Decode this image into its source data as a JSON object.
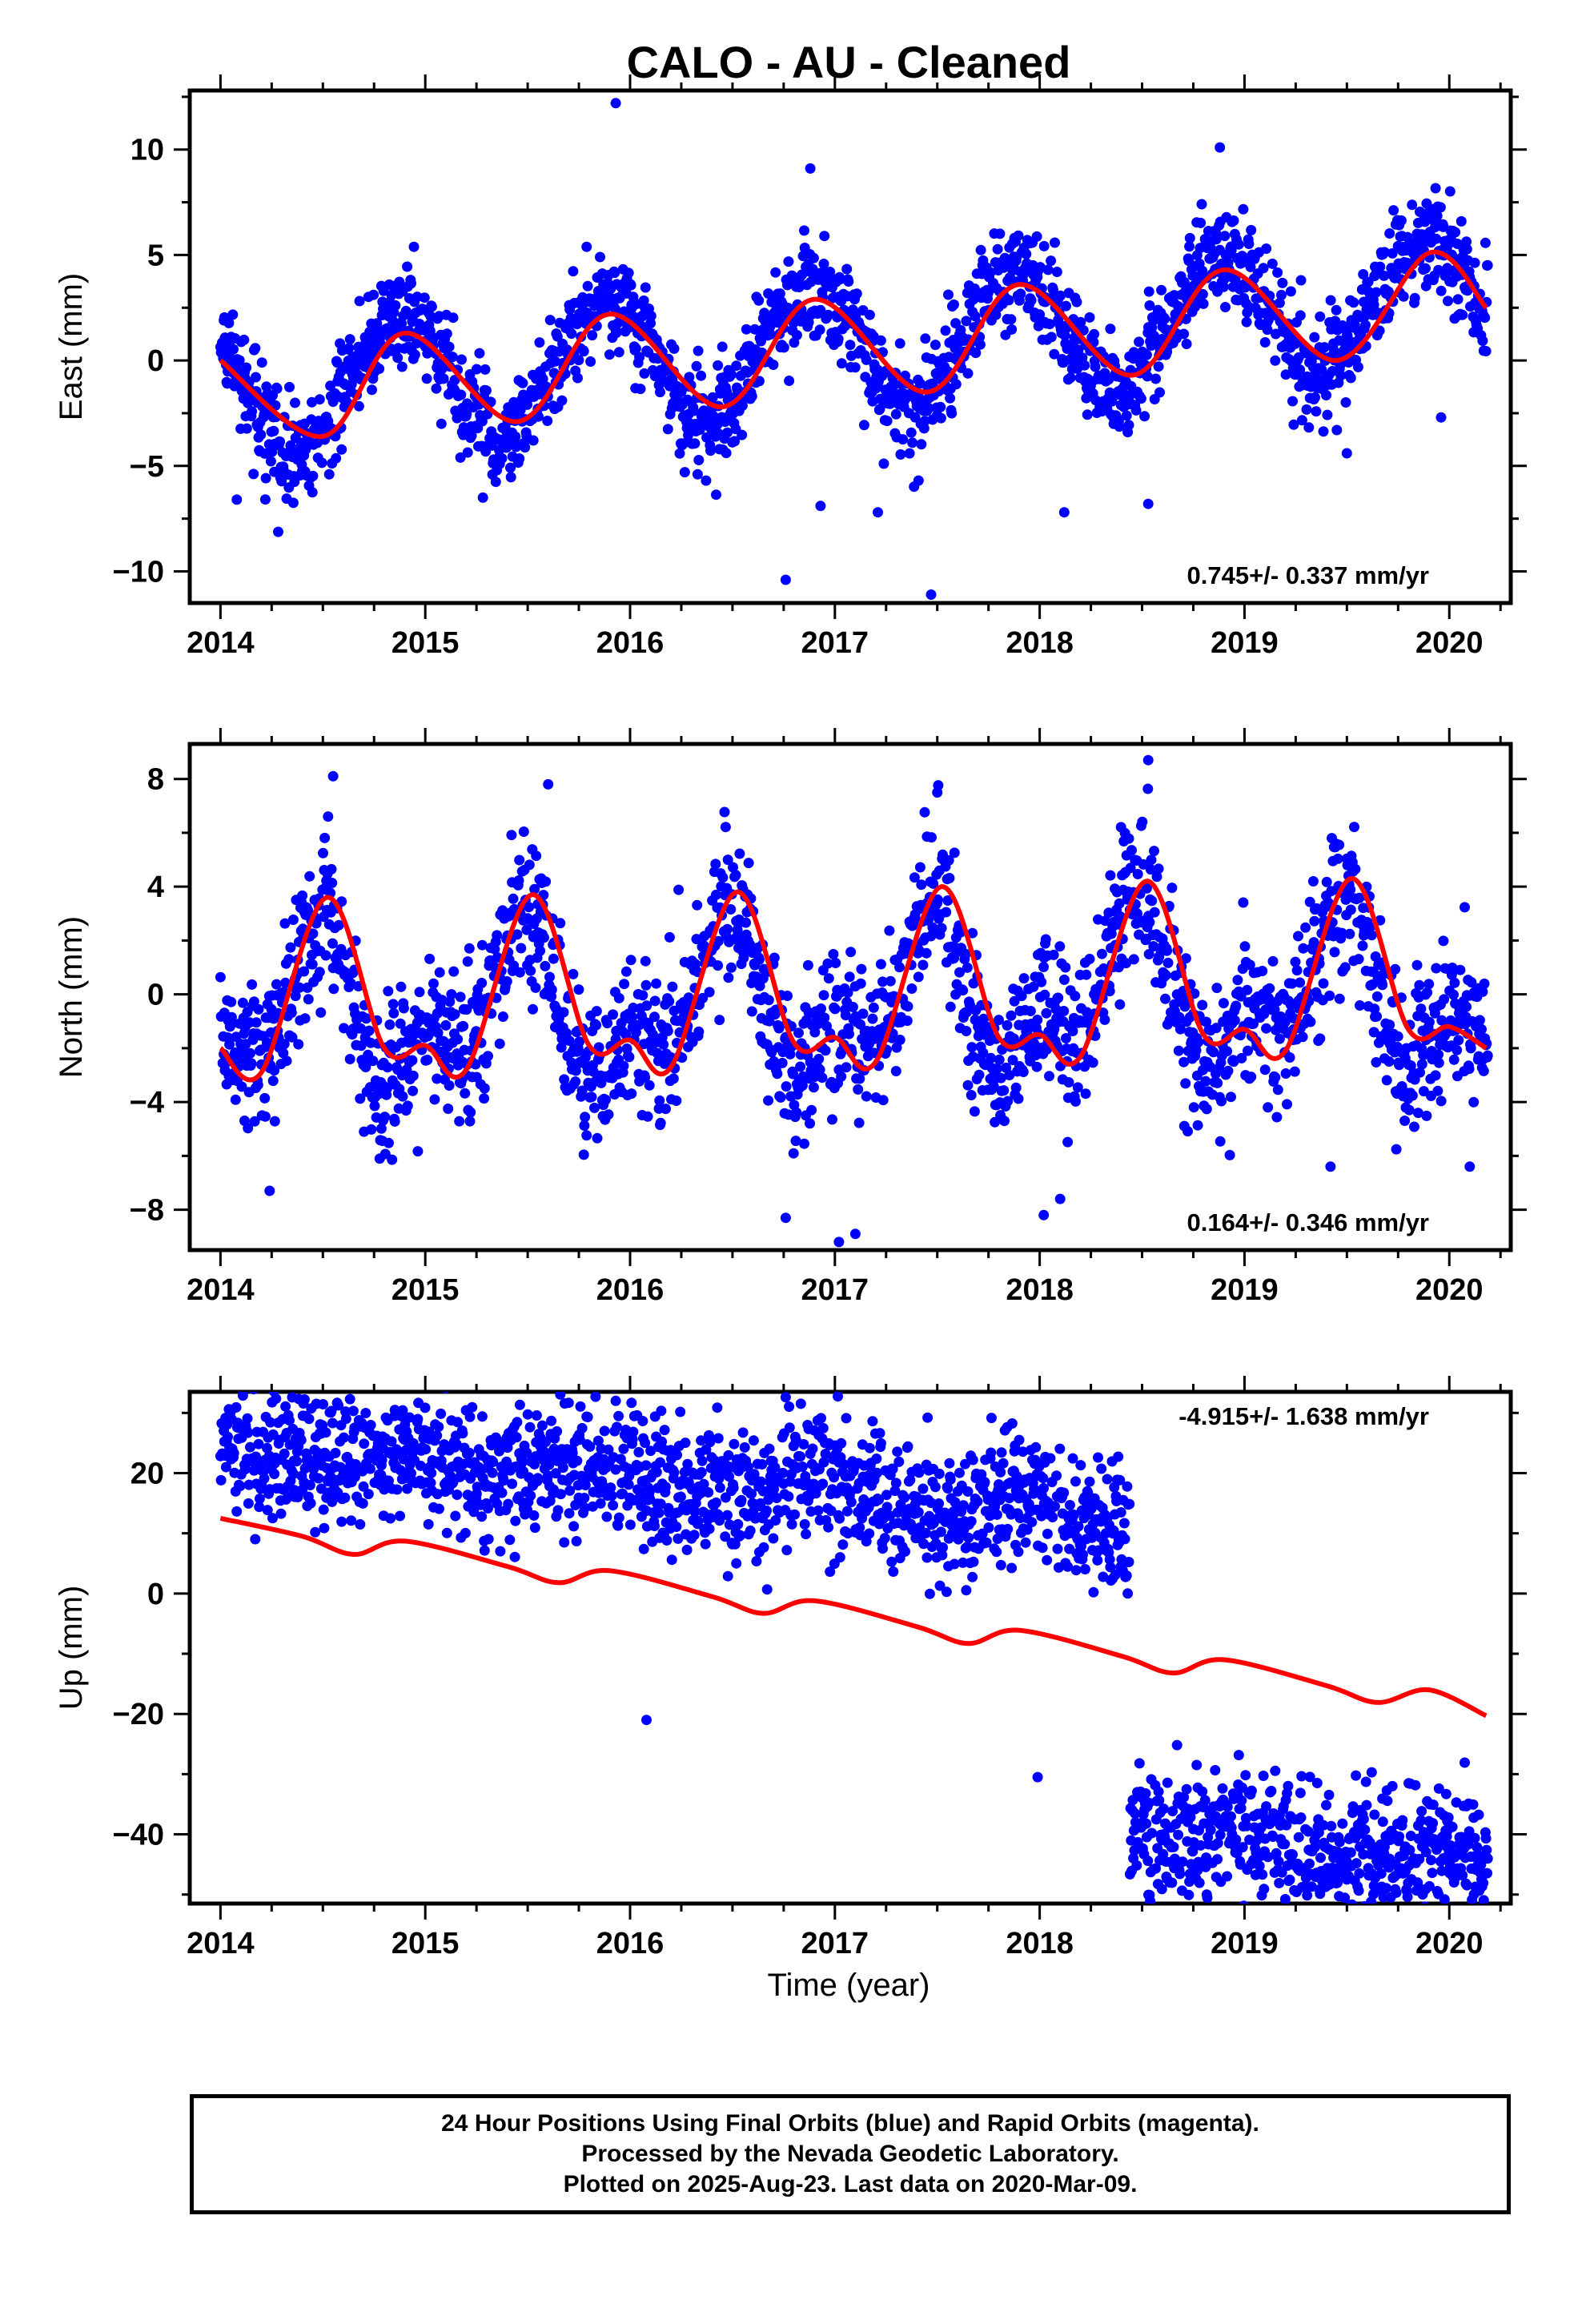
{
  "title": "CALO  - AU - Cleaned",
  "xlabel": "Time (year)",
  "footer": {
    "line1": "24 Hour Positions Using Final Orbits (blue) and Rapid Orbits (magenta).",
    "line2": "Processed by the Nevada Geodetic Laboratory.",
    "line3": "Plotted on 2025-Aug-23. Last data on 2020-Mar-09."
  },
  "colors": {
    "points": "#0000ff",
    "fit": "#ff0000",
    "axes": "#000000"
  },
  "chart_data": [
    {
      "type": "scatter",
      "component": "east",
      "ylabel": "East (mm)",
      "rate_label": "0.745+/- 0.337 mm/yr",
      "xlim": [
        2013.85,
        2020.3
      ],
      "ylim": [
        -11.5,
        12.8
      ],
      "xticks": [
        2014,
        2015,
        2016,
        2017,
        2018,
        2019,
        2020
      ],
      "yticks": [
        -10,
        -5,
        0,
        5,
        10
      ],
      "model": {
        "slope": 0.745,
        "t0": 2017.1,
        "offset": 0.72,
        "annual_amp": 3.0,
        "annual_peak": 2016.88,
        "semi_amp": 0.15,
        "semi_peak": 2017.1,
        "scatter": 1.2,
        "gaps": []
      },
      "fit_series": {
        "name": "fit",
        "x": [
          2014.0,
          2014.5,
          2014.9,
          2015.45,
          2015.9,
          2016.45,
          2016.9,
          2017.45,
          2017.9,
          2018.45,
          2018.9,
          2019.45,
          2019.9,
          2020.18
        ],
        "y": [
          0.0,
          -3.6,
          1.3,
          -2.9,
          2.2,
          -2.2,
          2.9,
          -1.5,
          3.6,
          -0.7,
          4.3,
          0.0,
          5.1,
          2.5
        ]
      },
      "outliers": [
        {
          "x": 2015.93,
          "y": 12.2
        },
        {
          "x": 2016.76,
          "y": -10.4
        },
        {
          "x": 2017.47,
          "y": -11.1
        },
        {
          "x": 2018.88,
          "y": 10.1
        },
        {
          "x": 2016.88,
          "y": 9.1
        },
        {
          "x": 2014.08,
          "y": -6.6
        },
        {
          "x": 2017.21,
          "y": -7.2
        },
        {
          "x": 2018.12,
          "y": -7.2
        },
        {
          "x": 2018.53,
          "y": -6.8
        },
        {
          "x": 2016.93,
          "y": -6.9
        },
        {
          "x": 2019.96,
          "y": -2.7
        },
        {
          "x": 2019.5,
          "y": -4.4
        }
      ]
    },
    {
      "type": "scatter",
      "component": "north",
      "ylabel": "North (mm)",
      "rate_label": "0.164+/- 0.346 mm/yr",
      "xlim": [
        2013.85,
        2020.3
      ],
      "ylim": [
        -9.5,
        9.3
      ],
      "xticks": [
        2014,
        2015,
        2016,
        2017,
        2018,
        2019,
        2020
      ],
      "yticks": [
        -8,
        -4,
        0,
        4,
        8
      ],
      "model": {
        "slope": 0.164,
        "t0": 2017.1,
        "offset": -0.35,
        "annual_amp": 2.4,
        "annual_peak": 2016.45,
        "semi_amp": 1.5,
        "semi_peak": 2016.5,
        "scatter": 1.4,
        "gaps": []
      },
      "fit_series": {
        "name": "fit",
        "x": [
          2014.0,
          2014.2,
          2014.52,
          2014.8,
          2015.0,
          2015.2,
          2015.52,
          2015.8,
          2016.0,
          2016.2,
          2016.52,
          2016.8,
          2017.0,
          2017.2,
          2017.52,
          2017.8,
          2018.0,
          2018.2,
          2018.52,
          2018.8,
          2019.0,
          2019.2,
          2019.52,
          2019.8,
          2020.0,
          2020.18
        ],
        "y": [
          -2.0,
          -2.9,
          3.6,
          -2.0,
          -1.9,
          -2.8,
          3.7,
          -1.9,
          -1.7,
          -2.7,
          3.8,
          -1.8,
          -1.6,
          -2.5,
          4.0,
          -1.6,
          -1.5,
          -2.3,
          4.2,
          -1.5,
          -1.3,
          -2.1,
          4.3,
          -1.3,
          -1.2,
          -2.0
        ]
      },
      "outliers": [
        {
          "x": 2014.55,
          "y": 8.1
        },
        {
          "x": 2015.6,
          "y": 7.8
        },
        {
          "x": 2018.53,
          "y": 8.7
        },
        {
          "x": 2017.02,
          "y": -9.2
        },
        {
          "x": 2017.1,
          "y": -8.9
        },
        {
          "x": 2016.76,
          "y": -8.3
        },
        {
          "x": 2018.02,
          "y": -8.2
        },
        {
          "x": 2018.1,
          "y": -7.6
        },
        {
          "x": 2014.24,
          "y": -7.3
        },
        {
          "x": 2019.42,
          "y": -6.4
        },
        {
          "x": 2020.1,
          "y": -6.4
        },
        {
          "x": 2017.5,
          "y": 7.5
        }
      ]
    },
    {
      "type": "scatter",
      "component": "up",
      "ylabel": "Up (mm)",
      "rate_label": "-4.915+/- 1.638 mm/yr",
      "xlim": [
        2013.85,
        2020.3
      ],
      "ylim": [
        -51.5,
        33.5
      ],
      "xticks": [
        2014,
        2015,
        2016,
        2017,
        2018,
        2019,
        2020
      ],
      "yticks": [
        -40,
        -20,
        0,
        20
      ],
      "model": {
        "slope": -4.915,
        "t0": 2017.1,
        "offset": -3.3,
        "annual_amp": 1.6,
        "annual_peak": 2016.9,
        "semi_amp": 0.3,
        "semi_peak": 2017.0,
        "scatter": 5.5,
        "gaps": []
      },
      "fit_series": {
        "name": "fit",
        "x": [
          2014.0,
          2014.4,
          2014.65,
          2014.9,
          2015.4,
          2015.65,
          2015.9,
          2016.4,
          2016.65,
          2016.9,
          2017.4,
          2017.65,
          2017.9,
          2018.4,
          2018.65,
          2018.9,
          2019.4,
          2019.65,
          2019.9,
          2020.18
        ],
        "y": [
          12.5,
          9.5,
          6.5,
          8.7,
          4.5,
          1.8,
          3.8,
          -0.5,
          -3.3,
          -1.2,
          -5.5,
          -8.3,
          -6.1,
          -10.4,
          -13.2,
          -11.0,
          -15.3,
          -18.1,
          -16.0,
          -20.3
        ]
      },
      "step": {
        "x": 2018.44,
        "before": 8,
        "after": -20
      },
      "outliers": [
        {
          "x": 2015.93,
          "y": 32.0
        },
        {
          "x": 2014.85,
          "y": 29.5
        },
        {
          "x": 2017.9,
          "y": 25.5
        },
        {
          "x": 2020.12,
          "y": -50.0
        },
        {
          "x": 2019.5,
          "y": -47.5
        },
        {
          "x": 2019.43,
          "y": -47.0
        },
        {
          "x": 2018.77,
          "y": -46.0
        },
        {
          "x": 2019.62,
          "y": -42.0
        },
        {
          "x": 2016.08,
          "y": -21.0
        },
        {
          "x": 2017.99,
          "y": -30.5
        },
        {
          "x": 2020.05,
          "y": -40.5
        },
        {
          "x": 2018.33,
          "y": 19.0
        }
      ]
    }
  ]
}
